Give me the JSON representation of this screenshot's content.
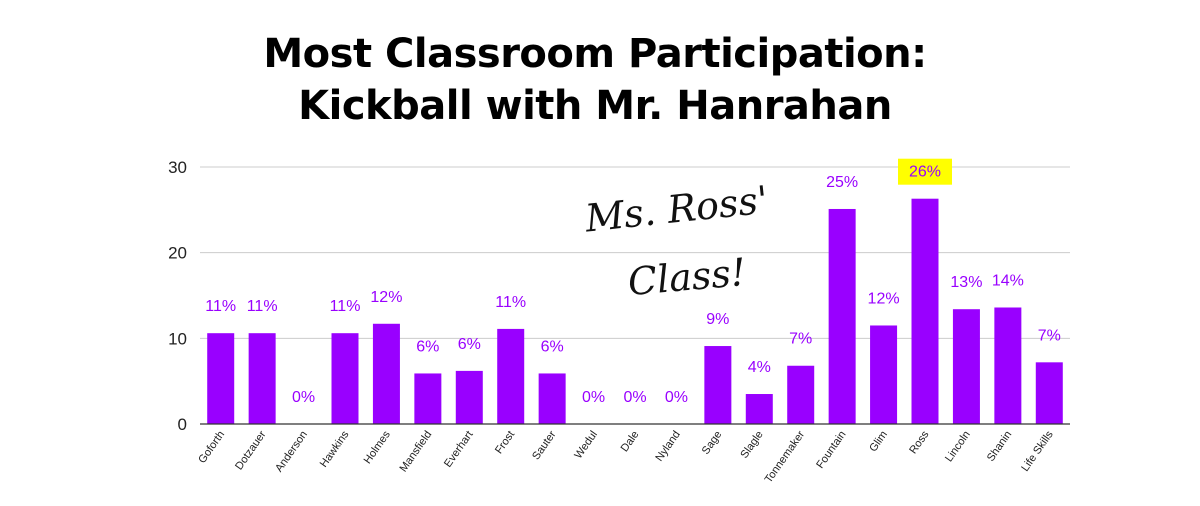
{
  "chart_data": {
    "type": "bar",
    "title": "Most Classroom Participation:\nKickball with Mr. Hanrahan",
    "xlabel": "",
    "ylabel": "",
    "ylim": [
      0,
      30
    ],
    "yticks": [
      0,
      10,
      20,
      30
    ],
    "grid": true,
    "legend": "none",
    "categories": [
      "Goforth",
      "Dotzauer",
      "Anderson",
      "Hawkins",
      "Holmes",
      "Mansfield",
      "Everhart",
      "Frost",
      "Sauter",
      "Wedul",
      "Dale",
      "Nyland",
      "Sage",
      "Slagle",
      "Tonnemaker",
      "Fountain",
      "Glim",
      "Ross",
      "Lincoln",
      "Shanin",
      "Life Skills"
    ],
    "values": [
      10.6,
      10.6,
      0,
      10.6,
      11.7,
      5.9,
      6.2,
      11.1,
      5.9,
      0,
      0,
      0,
      9.1,
      3.5,
      6.8,
      25.1,
      11.5,
      26.3,
      13.4,
      13.6,
      7.2
    ],
    "data_labels": [
      "11%",
      "11%",
      "0%",
      "11%",
      "12%",
      "6%",
      "6%",
      "11%",
      "6%",
      "0%",
      "0%",
      "0%",
      "9%",
      "4%",
      "7%",
      "25%",
      "12%",
      "26%",
      "13%",
      "14%",
      "7%"
    ],
    "highlight_index": 17,
    "annotations": [
      "Ms. Ross'",
      "Class!"
    ]
  },
  "colors": {
    "bar": "#9900ff",
    "label": "#9900ff",
    "highlight_bg": "#ffff00",
    "highlight_text": "#cc0000",
    "grid": "#cccccc",
    "axis": "#333333"
  }
}
